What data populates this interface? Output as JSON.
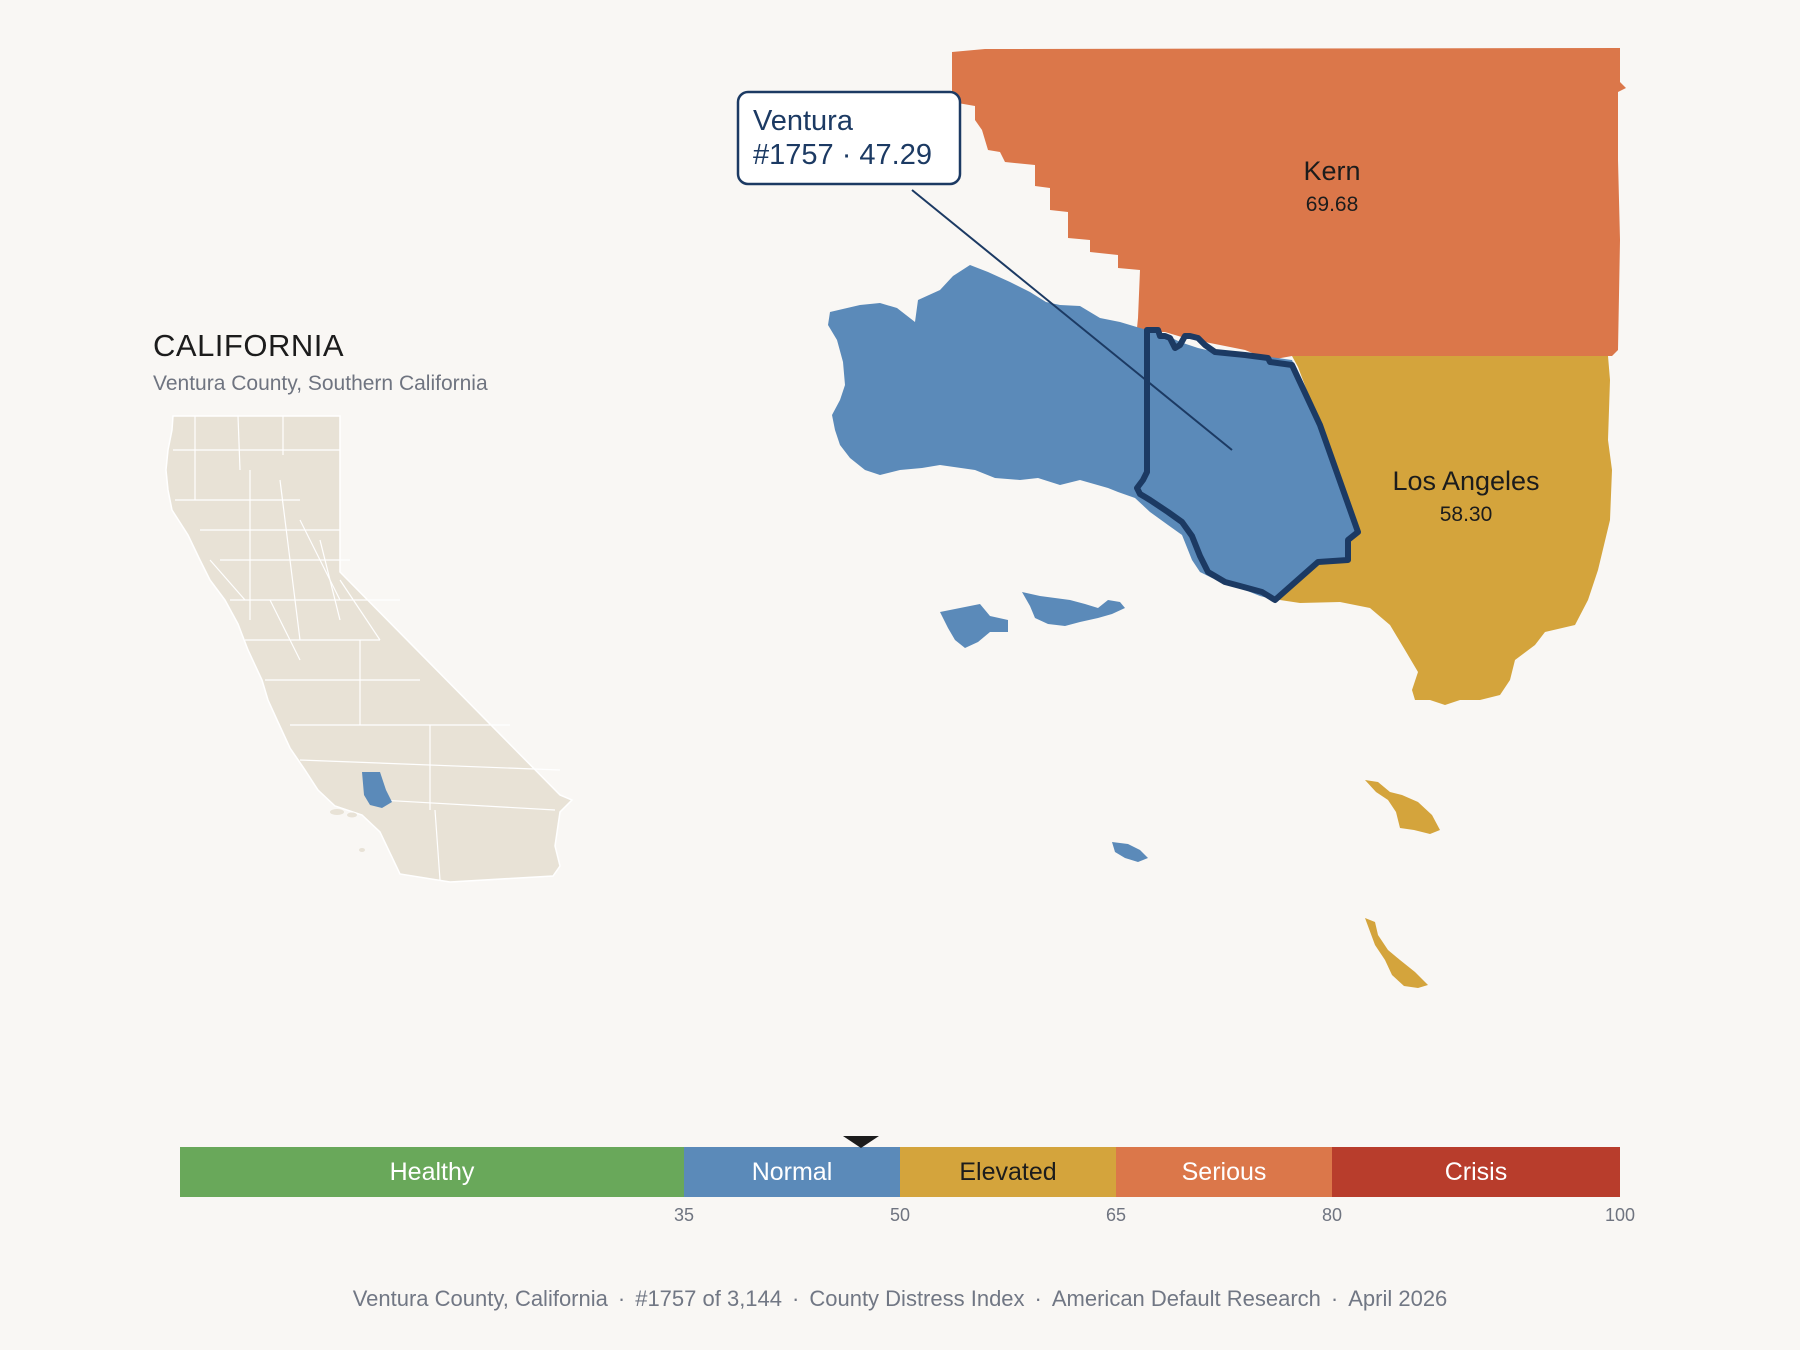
{
  "inset": {
    "title": "CALIFORNIA",
    "subtitle": "Ventura County, Southern California"
  },
  "callout": {
    "name": "Ventura",
    "detail": "#1757 · 47.29"
  },
  "counties": [
    {
      "name": "Kern",
      "score": "69.68",
      "category": "Serious",
      "color": "#db774a"
    },
    {
      "name": "Los Angeles",
      "score": "58.30",
      "category": "Elevated",
      "color": "#d4a43c"
    },
    {
      "name": "Ventura",
      "score": "47.29",
      "category": "Normal",
      "color": "#5b8ab9",
      "selected": true
    }
  ],
  "scale": {
    "min": 0,
    "max": 100,
    "marker_value": 47.29,
    "bands": [
      {
        "label": "Healthy",
        "from": 0,
        "to": 35,
        "color": "#69a85a",
        "text_color": "#ffffff"
      },
      {
        "label": "Normal",
        "from": 35,
        "to": 50,
        "color": "#5b8ab9",
        "text_color": "#ffffff"
      },
      {
        "label": "Elevated",
        "from": 50,
        "to": 65,
        "color": "#d4a43c",
        "text_color": "#1c1c1c"
      },
      {
        "label": "Serious",
        "from": 65,
        "to": 80,
        "color": "#db774a",
        "text_color": "#ffffff"
      },
      {
        "label": "Crisis",
        "from": 80,
        "to": 100,
        "color": "#b83d2c",
        "text_color": "#ffffff"
      }
    ],
    "tick_labels": [
      "35",
      "50",
      "65",
      "80",
      "100"
    ]
  },
  "footer": {
    "county": "Ventura County, California",
    "rank": "#1757 of 3,144",
    "index": "County Distress Index",
    "source": "American Default Research",
    "date": "April 2026"
  },
  "colors": {
    "background": "#f9f7f4",
    "highlight_outline": "#1c3a63",
    "state_fill": "#e8e2d6"
  }
}
